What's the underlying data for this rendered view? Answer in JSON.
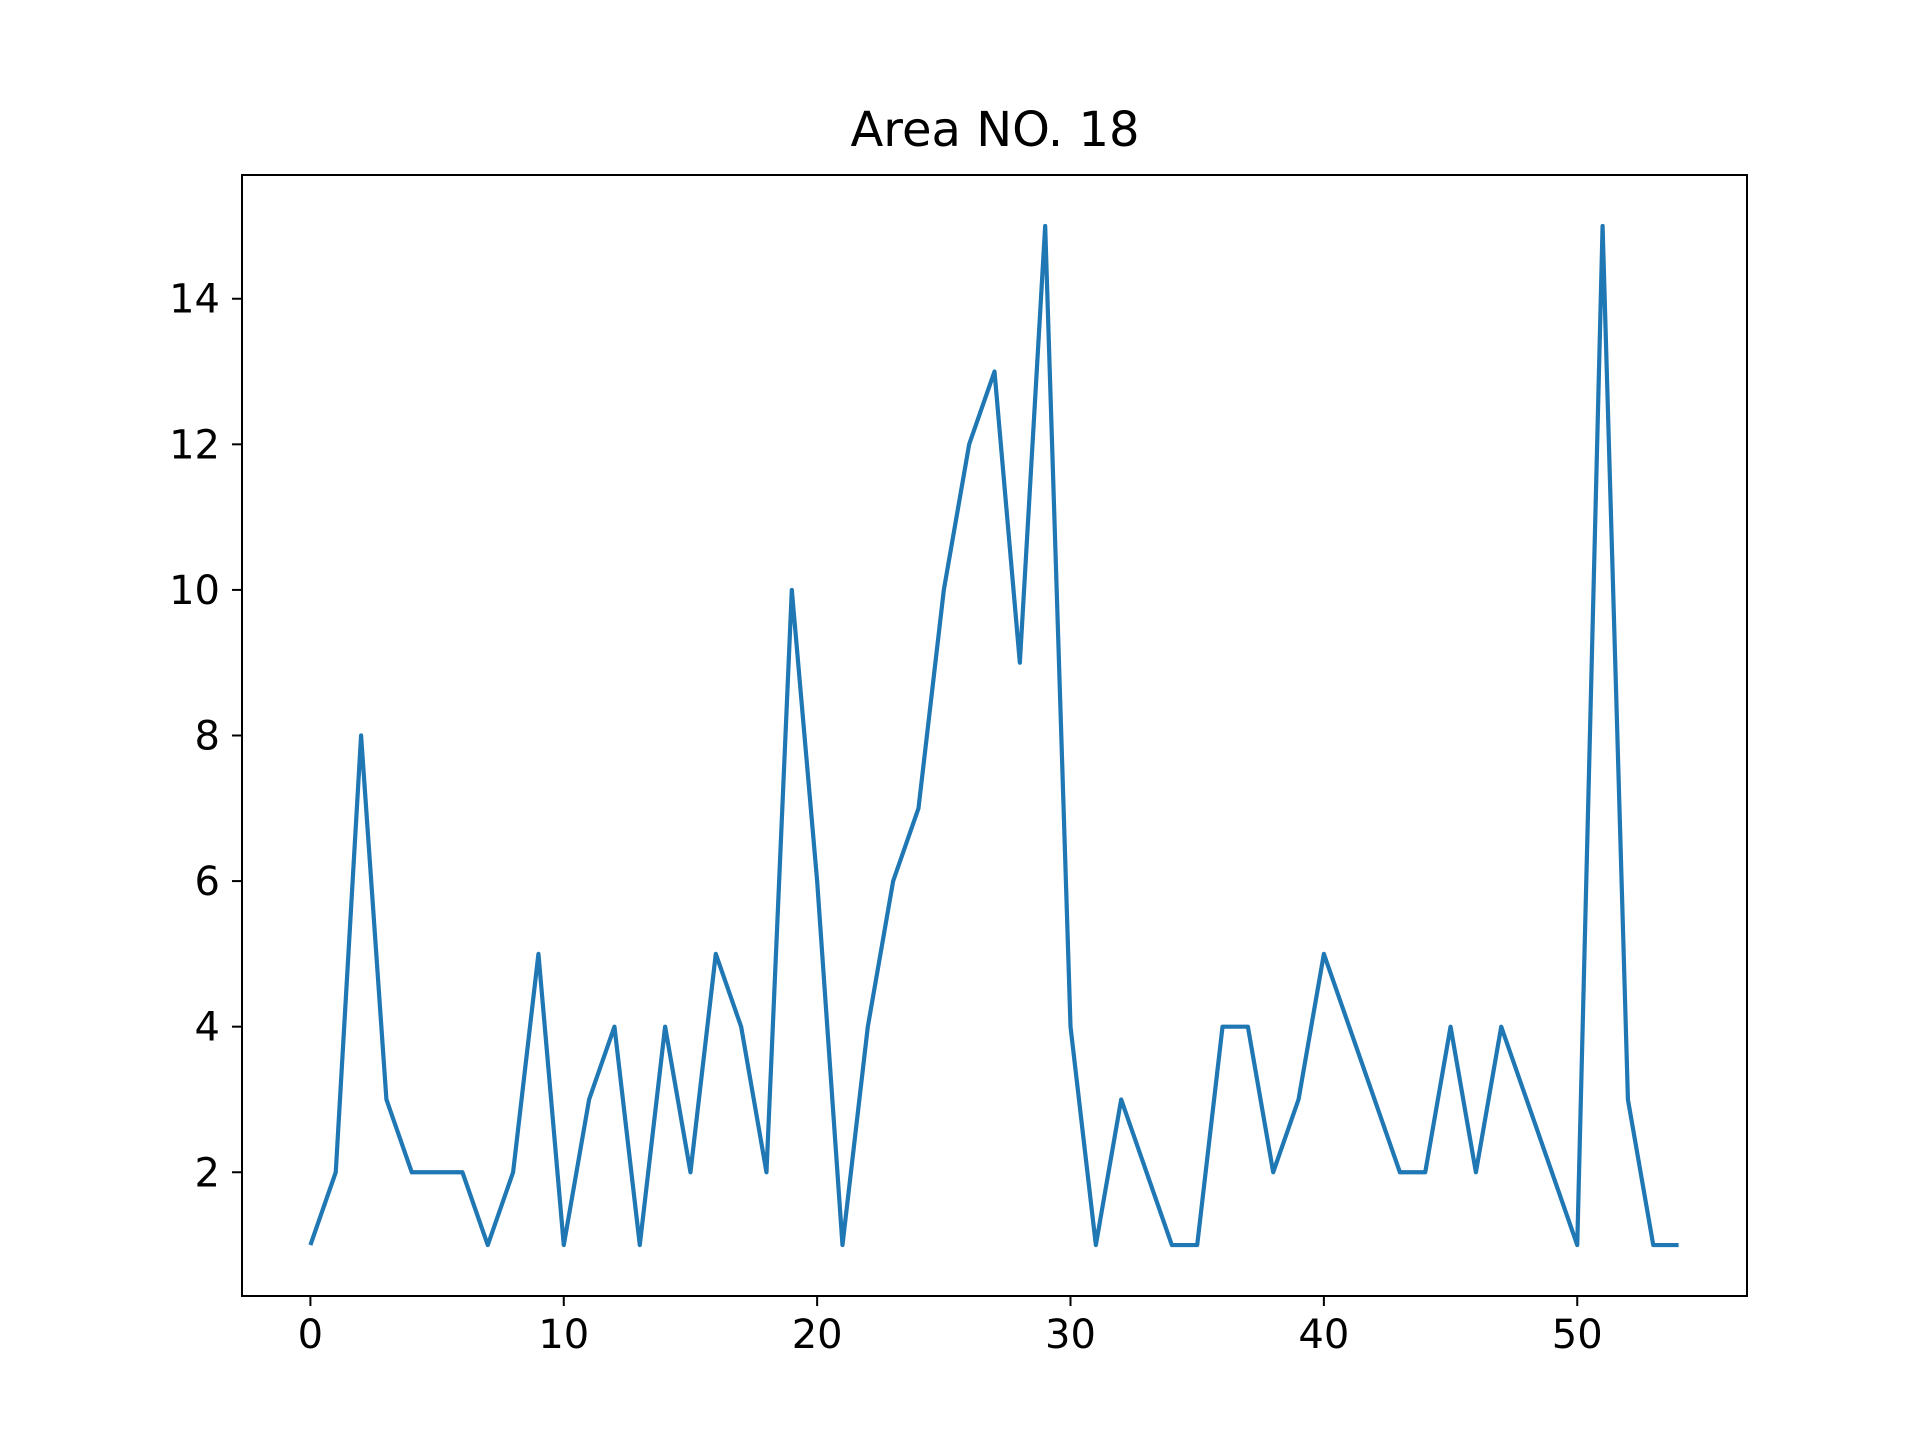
{
  "chart_data": {
    "type": "line",
    "title": "Area NO. 18",
    "xlabel": "",
    "ylabel": "",
    "xlim": [
      -2.7,
      56.7
    ],
    "ylim": [
      0.3,
      15.7
    ],
    "xticks": [
      0,
      10,
      20,
      30,
      40,
      50
    ],
    "yticks": [
      2,
      4,
      6,
      8,
      10,
      12,
      14
    ],
    "grid": false,
    "line_color": "#1f77b4",
    "series": [
      {
        "x": [
          0,
          1,
          2,
          3,
          4,
          5,
          6,
          7,
          8,
          9,
          10,
          11,
          12,
          13,
          14,
          15,
          16,
          17,
          18,
          19,
          20,
          21,
          22,
          23,
          24,
          25,
          26,
          27,
          28,
          29,
          30,
          31,
          32,
          33,
          34,
          35,
          36,
          37,
          38,
          39,
          40,
          41,
          42,
          43,
          44,
          45,
          46,
          47,
          48,
          49,
          50,
          51,
          52,
          53,
          54
        ],
        "values": [
          1,
          2,
          8,
          3,
          2,
          2,
          2,
          1,
          2,
          5,
          1,
          3,
          4,
          1,
          4,
          2,
          5,
          4,
          2,
          10,
          6,
          1,
          4,
          6,
          7,
          10,
          12,
          13,
          9,
          15,
          4,
          1,
          3,
          2,
          1,
          1,
          4,
          4,
          2,
          3,
          5,
          4,
          3,
          2,
          2,
          4,
          2,
          4,
          3,
          2,
          1,
          15,
          3,
          1,
          1
        ]
      }
    ]
  }
}
